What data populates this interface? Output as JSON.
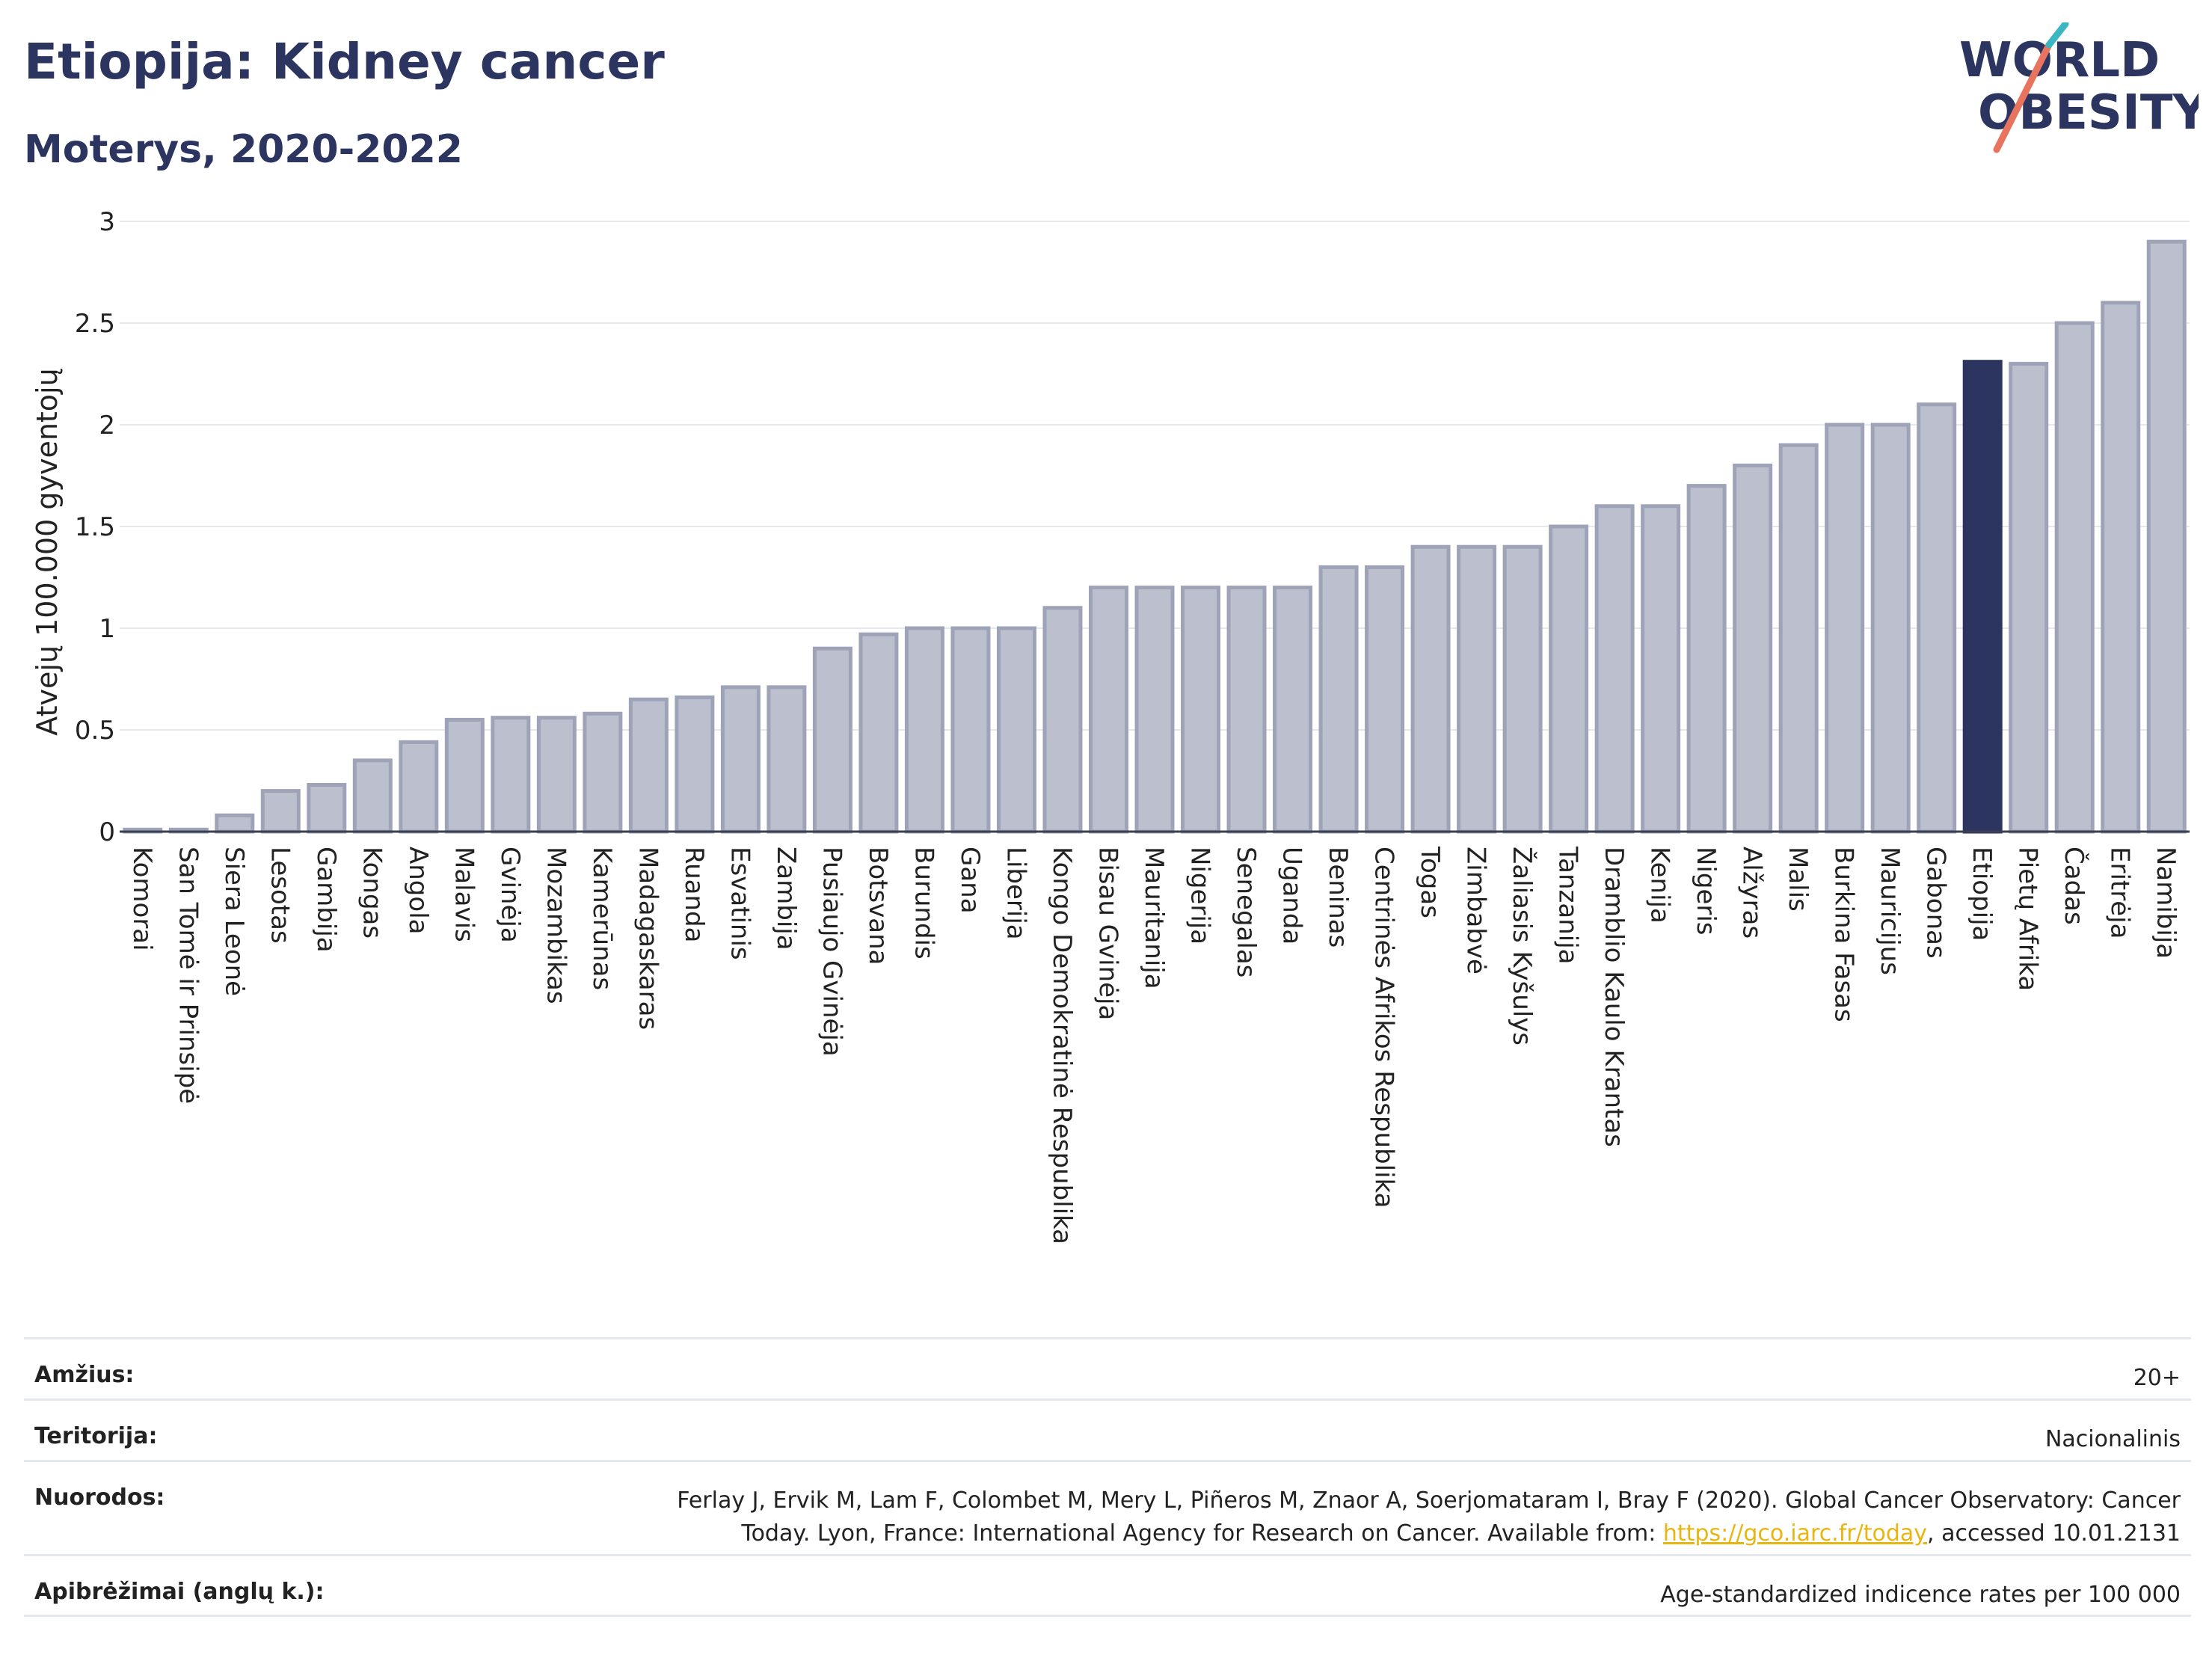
{
  "header": {
    "title": "Etiopija: Kidney cancer",
    "subtitle": "Moterys, 2020-2022"
  },
  "logo": {
    "line1": "WORLD",
    "line2": "OBESITY"
  },
  "chart_data": {
    "type": "bar",
    "ylabel": "Atvejų 100.000 gyventojų",
    "ylim": [
      0,
      3
    ],
    "yticks": [
      0,
      0.5,
      1,
      1.5,
      2,
      2.5,
      3
    ],
    "ytick_labels": [
      "0",
      "0.5",
      "1",
      "1.5",
      "2",
      "2.5",
      "3"
    ],
    "grid": true,
    "highlight": "Etiopija",
    "colors": {
      "bar": "#bcc0ce",
      "bar_edge": "#9ea3b7",
      "highlight": "#2c3560",
      "grid": "#e6e8ee"
    },
    "categories": [
      "Komorai",
      "San Tomė ir Prinsipė",
      "Siera Leonė",
      "Lesotas",
      "Gambija",
      "Kongas",
      "Angola",
      "Malavis",
      "Gvinėja",
      "Mozambikas",
      "Kamerūnas",
      "Madagaskaras",
      "Ruanda",
      "Esvatinis",
      "Zambija",
      "Pusiaujo Gvinėja",
      "Botsvana",
      "Burundis",
      "Gana",
      "Liberija",
      "Kongo Demokratinė Respublika",
      "Bisau Gvinėja",
      "Mauritanija",
      "Nigerija",
      "Senegalas",
      "Uganda",
      "Beninas",
      "Centrinės Afrikos Respublika",
      "Togas",
      "Zimbabvė",
      "Žaliasis Kyšulys",
      "Tanzanija",
      "Dramblio Kaulo Krantas",
      "Kenija",
      "Nigeris",
      "Alžyras",
      "Malis",
      "Burkina Fasas",
      "Mauricijus",
      "Gabonas",
      "Etiopija",
      "Pietų Afrika",
      "Čadas",
      "Eritrėja",
      "Namibija"
    ],
    "values": [
      0.01,
      0.01,
      0.08,
      0.2,
      0.23,
      0.35,
      0.44,
      0.55,
      0.56,
      0.56,
      0.58,
      0.65,
      0.66,
      0.71,
      0.71,
      0.9,
      0.97,
      1.0,
      1.0,
      1.0,
      1.1,
      1.2,
      1.2,
      1.2,
      1.2,
      1.2,
      1.3,
      1.3,
      1.4,
      1.4,
      1.4,
      1.5,
      1.6,
      1.6,
      1.7,
      1.8,
      1.9,
      2.0,
      2.0,
      2.1,
      2.31,
      2.3,
      2.5,
      2.6,
      2.9
    ]
  },
  "info": {
    "age_label": "Amžius:",
    "age_value": "20+",
    "territory_label": "Teritorija:",
    "territory_value": "Nacionalinis",
    "refs_label": "Nuorodos:",
    "refs_line1": "Ferlay J, Ervik M, Lam F, Colombet M, Mery L, Piñeros M, Znaor A, Soerjomataram I, Bray F (2020). Global Cancer Observatory: Cancer",
    "refs_line2_pre": "Today. Lyon, France: International Agency for Research on Cancer. Available from: ",
    "refs_link": "https://gco.iarc.fr/today",
    "refs_line2_post": ", accessed 10.01.2131",
    "defs_label": "Apibrėžimai (anglų k.):",
    "defs_value": "Age-standardized indicence rates per 100 000"
  }
}
